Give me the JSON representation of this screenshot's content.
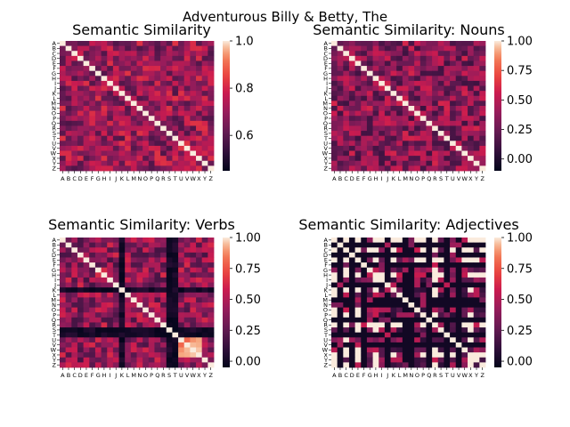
{
  "figure": {
    "suptitle": "Adventurous Billy & Betty, The"
  },
  "chart_data": [
    {
      "type": "heatmap",
      "title": "Semantic Similarity",
      "labels": [
        "A",
        "B",
        "C",
        "D",
        "E",
        "F",
        "G",
        "H",
        "I",
        "J",
        "K",
        "L",
        "M",
        "N",
        "O",
        "P",
        "Q",
        "R",
        "S",
        "T",
        "U",
        "V",
        "W",
        "X",
        "Y",
        "Z"
      ],
      "vmin": 0.45,
      "vmax": 1.0,
      "colorbar_ticks": [
        0.6,
        0.8,
        1.0
      ],
      "colorbar_tick_labels": [
        "0.6",
        "0.8",
        "1.0"
      ],
      "diagonal": 1.0,
      "off_diagonal_typical": 0.7,
      "colormap": "rocket",
      "seed": 11
    },
    {
      "type": "heatmap",
      "title": "Semantic Similarity: Nouns",
      "labels": [
        "A",
        "B",
        "C",
        "D",
        "E",
        "F",
        "G",
        "H",
        "I",
        "J",
        "K",
        "L",
        "M",
        "N",
        "O",
        "P",
        "Q",
        "R",
        "S",
        "T",
        "U",
        "V",
        "W",
        "X",
        "Y",
        "Z"
      ],
      "vmin": -0.1,
      "vmax": 1.0,
      "colorbar_ticks": [
        0.0,
        0.25,
        0.5,
        0.75,
        1.0
      ],
      "colorbar_tick_labels": [
        "0.00",
        "0.25",
        "0.50",
        "0.75",
        "1.00"
      ],
      "diagonal": 1.0,
      "off_diagonal_typical": 0.35,
      "colormap": "rocket",
      "seed": 23
    },
    {
      "type": "heatmap",
      "title": "Semantic Similarity: Verbs",
      "labels": [
        "A",
        "B",
        "C",
        "D",
        "E",
        "F",
        "G",
        "H",
        "I",
        "J",
        "K",
        "L",
        "M",
        "N",
        "O",
        "P",
        "Q",
        "R",
        "S",
        "T",
        "U",
        "V",
        "W",
        "X",
        "Y",
        "Z"
      ],
      "vmin": -0.05,
      "vmax": 1.0,
      "colorbar_ticks": [
        0.0,
        0.25,
        0.5,
        0.75,
        1.0
      ],
      "colorbar_tick_labels": [
        "0.00",
        "0.25",
        "0.50",
        "0.75",
        "1.00"
      ],
      "diagonal": 1.0,
      "off_diagonal_typical": 0.4,
      "dark_bands": [
        10,
        18,
        19
      ],
      "light_block": [
        20,
        21,
        22,
        23
      ],
      "colormap": "rocket",
      "seed": 37
    },
    {
      "type": "heatmap",
      "title": "Semantic Similarity: Adjectives",
      "labels": [
        "A",
        "B",
        "C",
        "D",
        "E",
        "F",
        "G",
        "H",
        "I",
        "J",
        "K",
        "L",
        "M",
        "N",
        "O",
        "P",
        "Q",
        "R",
        "S",
        "T",
        "U",
        "V",
        "W",
        "X",
        "Y",
        "Z"
      ],
      "vmin": -0.05,
      "vmax": 1.0,
      "colorbar_ticks": [
        0.0,
        0.25,
        0.5,
        0.75,
        1.0
      ],
      "colorbar_tick_labels": [
        "0.00",
        "0.25",
        "0.50",
        "0.75",
        "1.00"
      ],
      "diagonal": 1.0,
      "off_diagonal_typical": 0.3,
      "zero_bands": [
        1,
        3,
        5,
        9,
        12,
        13,
        16,
        19,
        21
      ],
      "one_bands": [
        0,
        2,
        4,
        7,
        17,
        23
      ],
      "colormap": "rocket",
      "seed": 53
    }
  ]
}
